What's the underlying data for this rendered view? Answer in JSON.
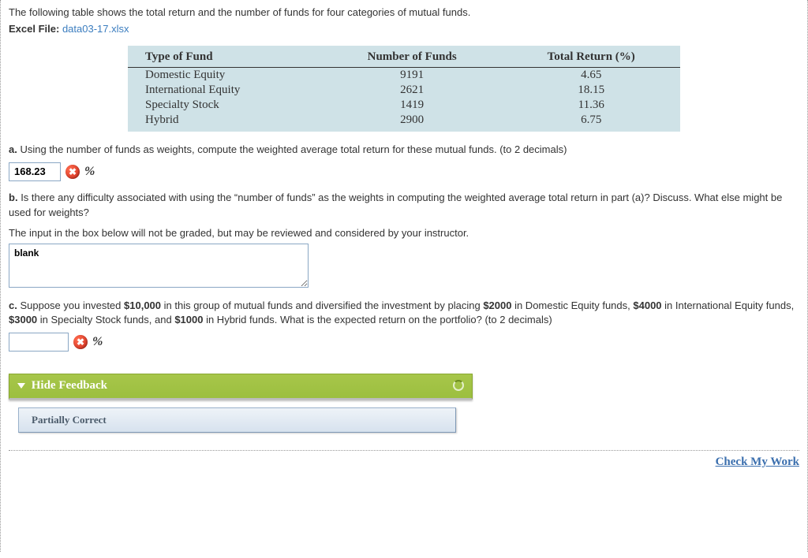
{
  "intro": "The following table shows the total return and the number of funds for four categories of mutual funds.",
  "file": {
    "label": "Excel File:",
    "name": "data03-17.xlsx"
  },
  "table": {
    "background_color": "#cfe2e7",
    "header_border_color": "#333333",
    "font_family": "Times New Roman",
    "columns": [
      "Type of Fund",
      "Number of Funds",
      "Total Return (%)"
    ],
    "rows": [
      [
        "Domestic Equity",
        "9191",
        "4.65"
      ],
      [
        "International Equity",
        "2621",
        "18.15"
      ],
      [
        "Specialty Stock",
        "1419",
        "11.36"
      ],
      [
        "Hybrid",
        "2900",
        "6.75"
      ]
    ]
  },
  "qa": {
    "letter": "a.",
    "text": "Using the number of funds as weights, compute the weighted average total return for these mutual funds. (to 2 decimals)",
    "answer_value": "168.23",
    "unit": "%",
    "status_icon": "incorrect"
  },
  "qb": {
    "letter": "b.",
    "text": "Is there any difficulty associated with using the “number of funds” as the weights in computing the weighted average total return in part (a)? Discuss. What else might be used for weights?",
    "note": "The input in the box below will not be graded, but may be reviewed and considered by your instructor.",
    "textarea_value": "blank"
  },
  "qc": {
    "letter": "c.",
    "prefix": "Suppose you invested ",
    "amt_total": "$10,000",
    "mid1": " in this group of mutual funds and diversified the investment by placing ",
    "amt1": "$2000",
    "mid2": " in Domestic Equity funds, ",
    "amt2": "$4000",
    "mid3": " in International Equity funds, ",
    "amt3": "$3000",
    "mid4": " in Specialty Stock funds, and ",
    "amt4": "$1000",
    "suffix": " in Hybrid funds. What is the expected return on the portfolio? (to 2 decimals)",
    "answer_value": "",
    "unit": "%",
    "status_icon": "incorrect"
  },
  "feedback": {
    "toggle_label": "Hide Feedback",
    "status": "Partially Correct",
    "header_bg": "#9cbf3f",
    "status_bg": "#d7e2ee"
  },
  "footer": {
    "check_label": "Check My Work"
  },
  "icons": {
    "x_glyph": "✖",
    "incorrect_color": "#cc2a1a"
  }
}
